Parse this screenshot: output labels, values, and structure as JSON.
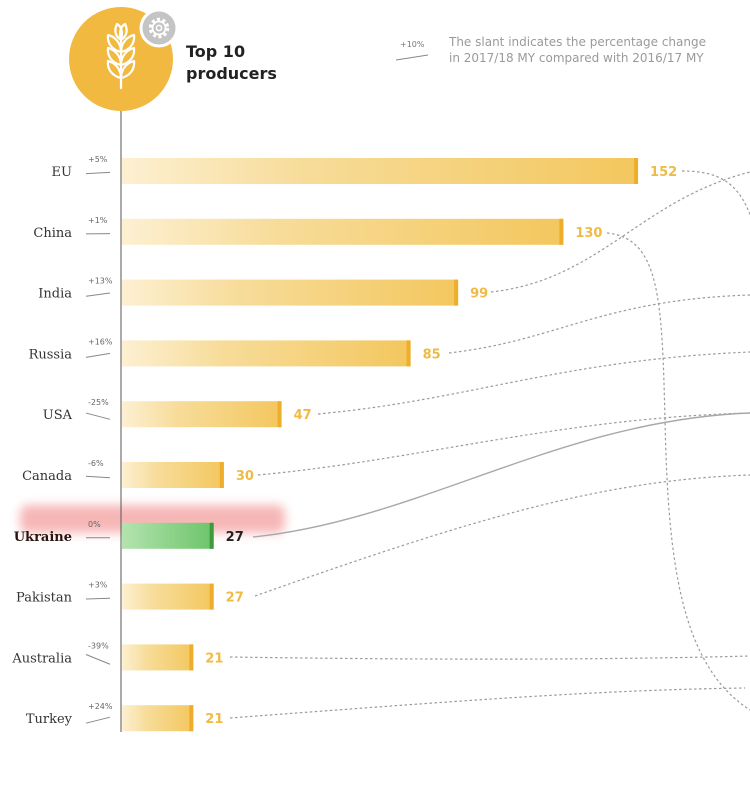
{
  "header": {
    "title_line1": "Top 10",
    "title_line2": "producers",
    "icon": "wheat-icon",
    "settings_icon": "gear-icon"
  },
  "legend_note": {
    "example_pct": "+10%",
    "line1": "The slant indicates the percentage change",
    "line2": "in 2017/18 MY compared with 2016/17 MY"
  },
  "colors": {
    "bar": "#f3c75e",
    "bar_light": "#fdf0d2",
    "bar_cap": "#eeae2c",
    "value_text": "#f0bb45",
    "highlight_bar": "#6cc46a",
    "highlight_band": "#f29090",
    "badge": "#f1b940"
  },
  "chart_data": {
    "type": "bar",
    "orientation": "horizontal",
    "title": "Top 10 producers",
    "unit_note": "The slant indicates the percentage change in 2017/18 MY compared with 2016/17 MY",
    "categories": [
      "EU",
      "China",
      "India",
      "Russia",
      "USA",
      "Canada",
      "Ukraine",
      "Pakistan",
      "Australia",
      "Turkey"
    ],
    "values": [
      152,
      130,
      99,
      85,
      47,
      30,
      27,
      27,
      21,
      21
    ],
    "value_labels": [
      "152",
      "130",
      "99",
      "85",
      "47",
      "30",
      "27",
      "27",
      "21",
      "21"
    ],
    "pct_change": [
      5,
      1,
      13,
      16,
      -25,
      -6,
      0,
      3,
      -39,
      24
    ],
    "pct_labels": [
      "+5%",
      "+1%",
      "+13%",
      "+16%",
      "-25%",
      "-6%",
      "0%",
      "+3%",
      "-39%",
      "+24%"
    ],
    "highlight": "Ukraine",
    "xlim": [
      0,
      152
    ],
    "grid": false,
    "legend": "none"
  }
}
